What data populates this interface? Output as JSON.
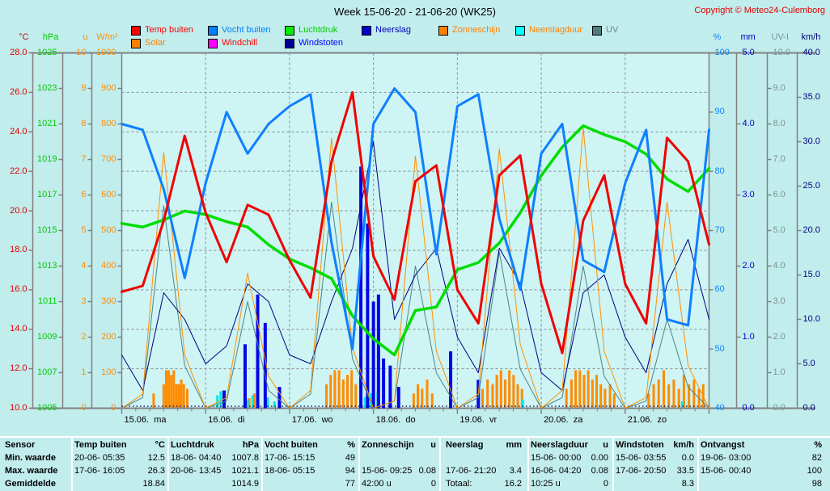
{
  "title": "Week 15-06-20 - 21-06-20 (WK25)",
  "copyright": "Copyright © Meteo24-Culemborg",
  "legend": {
    "rows": [
      [
        {
          "label": "Temp buiten",
          "swatch": "#ff0000",
          "text_color": "#ff0000"
        },
        {
          "label": "Vocht buiten",
          "swatch": "#0080ff",
          "text_color": "#0080ff"
        },
        {
          "label": "Luchtdruk",
          "swatch": "#00ee00",
          "text_color": "#00cc00"
        },
        {
          "label": "Neerslag",
          "swatch": "#0000cc",
          "text_color": "#0000bb"
        },
        {
          "label": "Zonneschijn",
          "swatch": "#ff8000",
          "text_color": "#ff8000"
        },
        {
          "label": "Neerslagduur",
          "swatch": "#00ffff",
          "text_color": "#ff8000"
        },
        {
          "label": "UV",
          "swatch": "#4d7d7d",
          "text_color": "#708585"
        }
      ],
      [
        {
          "label": "Solar",
          "swatch": "#ff8000",
          "text_color": "#ff8000"
        },
        {
          "label": "Windchill",
          "swatch": "#ff00ff",
          "text_color": "#ff0000"
        },
        {
          "label": "Windstoten",
          "swatch": "#000099",
          "text_color": "#0000ff"
        }
      ]
    ]
  },
  "axes": {
    "left": [
      {
        "unit": "°C",
        "color": "#e00000",
        "labels": [
          "28.0",
          "26.0",
          "24.0",
          "22.0",
          "20.0",
          "18.0",
          "16.0",
          "14.0",
          "12.0",
          "10.0"
        ]
      },
      {
        "unit": "hPa",
        "color": "#00cc00",
        "labels": [
          "1025",
          "1023",
          "1021",
          "1019",
          "1017",
          "1015",
          "1013",
          "1011",
          "1009",
          "1007",
          "1005"
        ]
      },
      {
        "unit": "u",
        "color": "#ff8c00",
        "labels": [
          "10",
          "9",
          "8",
          "7",
          "6",
          "5",
          "4",
          "3",
          "2",
          "1",
          "0"
        ]
      },
      {
        "unit": "W/m²",
        "color": "#ff8c00",
        "labels": [
          "1000",
          "900",
          "800",
          "700",
          "600",
          "500",
          "400",
          "300",
          "200",
          "100",
          "0"
        ]
      }
    ],
    "right": [
      {
        "unit": "%",
        "color": "#0a85ff",
        "labels": [
          "100",
          "90",
          "80",
          "70",
          "60",
          "50",
          "40"
        ]
      },
      {
        "unit": "mm",
        "color": "#0000cc",
        "labels": [
          "5.0",
          "4.0",
          "3.0",
          "2.0",
          "1.0",
          "0.0"
        ]
      },
      {
        "unit": "UV-I",
        "color": "#7a9393",
        "labels": [
          "10.0",
          "9.0",
          "8.0",
          "7.0",
          "6.0",
          "5.0",
          "4.0",
          "3.0",
          "2.0",
          "1.0",
          "0.0"
        ]
      },
      {
        "unit": "km/h",
        "color": "#00007f",
        "labels": [
          "40.0",
          "35.0",
          "30.0",
          "25.0",
          "20.0",
          "15.0",
          "10.0",
          "5.0",
          "0.0"
        ]
      }
    ]
  },
  "x_axis": {
    "day_labels": [
      "15.06.  ma",
      "16.06.  di",
      "17.06.  wo",
      "18.06.  do",
      "19.06.  vr",
      "20.06.  za",
      "21.06.  zo"
    ]
  },
  "chart_data": {
    "type": "line",
    "title": "Week 15-06-20 - 21-06-20 (WK25)",
    "x_unit": "days since 15-06-2020 00:00 (sampled every 6 h)",
    "x": [
      0,
      0.25,
      0.5,
      0.75,
      1,
      1.25,
      1.5,
      1.75,
      2,
      2.25,
      2.5,
      2.75,
      3,
      3.25,
      3.5,
      3.75,
      4,
      4.25,
      4.5,
      4.75,
      5,
      5.25,
      5.5,
      5.75,
      6,
      6.25,
      6.5,
      6.75,
      7
    ],
    "grid": true,
    "legend_position": "top",
    "series": [
      {
        "name": "Temp buiten",
        "unit": "°C",
        "color": "#f00000",
        "width": 3,
        "axis_min": 10,
        "axis_max": 28,
        "values": [
          15.9,
          16.2,
          19.5,
          23.8,
          19.9,
          17.4,
          20.3,
          19.8,
          17.5,
          15.6,
          22.5,
          26.0,
          17.7,
          15.5,
          21.5,
          22.3,
          16.0,
          14.3,
          21.8,
          22.8,
          16.3,
          12.8,
          19.5,
          21.8,
          16.3,
          14.3,
          23.7,
          22.5,
          18.3
        ]
      },
      {
        "name": "Vocht buiten",
        "unit": "%",
        "color": "#0f7fff",
        "width": 3,
        "axis_min": 40,
        "axis_max": 100,
        "values": [
          88,
          87,
          77,
          62,
          78,
          90,
          83,
          88,
          91,
          93,
          68,
          50,
          88,
          94,
          90,
          66,
          91,
          93,
          72,
          60,
          83,
          88,
          65,
          63,
          78,
          87,
          55,
          54,
          87
        ]
      },
      {
        "name": "Luchtdruk",
        "unit": "hPa",
        "color": "#00dd00",
        "width": 3.5,
        "axis_min": 1005,
        "axis_max": 1025,
        "values": [
          1015.4,
          1015.2,
          1015.6,
          1016.1,
          1015.9,
          1015.5,
          1015.2,
          1014.2,
          1013.4,
          1012.9,
          1012.3,
          1010.2,
          1008.9,
          1008.0,
          1010.5,
          1010.7,
          1012.8,
          1013.2,
          1014.3,
          1016.0,
          1018.1,
          1019.7,
          1020.9,
          1020.4,
          1020.0,
          1019.3,
          1017.9,
          1017.2,
          1018.5
        ]
      },
      {
        "name": "Solar",
        "unit": "W/m²",
        "color": "#ff9000",
        "width": 1,
        "axis_min": 0,
        "axis_max": 1000,
        "values": [
          0,
          40,
          720,
          150,
          0,
          30,
          380,
          90,
          0,
          50,
          760,
          170,
          0,
          20,
          710,
          160,
          0,
          40,
          730,
          180,
          0,
          50,
          790,
          160,
          0,
          30,
          580,
          120,
          0
        ]
      },
      {
        "name": "UV",
        "unit": "UV-I",
        "color": "#4d8585",
        "width": 1,
        "axis_min": 0,
        "axis_max": 10,
        "values": [
          0,
          0.3,
          5.7,
          1.2,
          0,
          0.2,
          3.0,
          0.5,
          0,
          0.4,
          5.8,
          1.4,
          0,
          0.2,
          4.0,
          1.0,
          0,
          0.3,
          4.4,
          1.1,
          0,
          0.3,
          4.0,
          0.9,
          0,
          0.2,
          2.5,
          0.6,
          0
        ]
      },
      {
        "name": "Windstoten",
        "unit": "km/h",
        "color": "#00007f",
        "width": 1,
        "axis_min": 0,
        "axis_max": 40,
        "values": [
          6,
          2,
          13,
          10,
          5,
          7,
          14,
          12,
          6,
          5,
          12,
          18,
          30,
          10,
          15,
          18,
          8,
          4,
          18,
          14,
          4,
          2,
          13,
          15,
          8,
          4,
          14,
          19,
          10
        ]
      }
    ],
    "neerslag_bars": {
      "name": "Neerslag",
      "unit": "mm",
      "color": "#0505e8",
      "axis_min": 0,
      "axis_max": 5,
      "events": [
        [
          1.22,
          0.25
        ],
        [
          1.47,
          0.9
        ],
        [
          1.62,
          1.6
        ],
        [
          1.71,
          1.2
        ],
        [
          1.88,
          0.3
        ],
        [
          2.85,
          3.4
        ],
        [
          2.93,
          2.6
        ],
        [
          3.0,
          1.5
        ],
        [
          3.06,
          1.6
        ],
        [
          3.12,
          0.7
        ],
        [
          3.2,
          0.6
        ],
        [
          3.3,
          0.3
        ],
        [
          3.92,
          0.8
        ],
        [
          4.25,
          0.4
        ]
      ]
    },
    "zonneschijn_bars": {
      "name": "Zonneschijn",
      "unit": "u per 5 min",
      "color": "#ff8c00",
      "max_value": 0.08,
      "events": [
        [
          0.38,
          0.03
        ],
        [
          0.5,
          0.05
        ],
        [
          0.53,
          0.08
        ],
        [
          0.56,
          0.08
        ],
        [
          0.59,
          0.07
        ],
        [
          0.62,
          0.08
        ],
        [
          0.65,
          0.05
        ],
        [
          0.68,
          0.05
        ],
        [
          0.71,
          0.06
        ],
        [
          0.74,
          0.05
        ],
        [
          0.78,
          0.04
        ],
        [
          1.52,
          0.02
        ],
        [
          1.58,
          0.03
        ],
        [
          2.44,
          0.05
        ],
        [
          2.49,
          0.07
        ],
        [
          2.54,
          0.08
        ],
        [
          2.59,
          0.08
        ],
        [
          2.64,
          0.06
        ],
        [
          2.69,
          0.07
        ],
        [
          2.74,
          0.08
        ],
        [
          2.79,
          0.05
        ],
        [
          3.48,
          0.03
        ],
        [
          3.53,
          0.05
        ],
        [
          3.58,
          0.04
        ],
        [
          3.64,
          0.06
        ],
        [
          3.7,
          0.03
        ],
        [
          4.3,
          0.04
        ],
        [
          4.36,
          0.06
        ],
        [
          4.42,
          0.05
        ],
        [
          4.47,
          0.07
        ],
        [
          4.52,
          0.08
        ],
        [
          4.57,
          0.06
        ],
        [
          4.62,
          0.08
        ],
        [
          4.67,
          0.07
        ],
        [
          4.72,
          0.05
        ],
        [
          4.77,
          0.04
        ],
        [
          5.3,
          0.04
        ],
        [
          5.36,
          0.06
        ],
        [
          5.41,
          0.08
        ],
        [
          5.46,
          0.08
        ],
        [
          5.51,
          0.07
        ],
        [
          5.56,
          0.08
        ],
        [
          5.61,
          0.06
        ],
        [
          5.66,
          0.07
        ],
        [
          5.71,
          0.05
        ],
        [
          5.76,
          0.04
        ],
        [
          5.82,
          0.05
        ],
        [
          5.87,
          0.03
        ],
        [
          6.28,
          0.03
        ],
        [
          6.34,
          0.05
        ],
        [
          6.4,
          0.06
        ],
        [
          6.46,
          0.08
        ],
        [
          6.52,
          0.05
        ],
        [
          6.58,
          0.06
        ],
        [
          6.64,
          0.04
        ],
        [
          6.7,
          0.07
        ],
        [
          6.76,
          0.05
        ],
        [
          6.82,
          0.06
        ],
        [
          6.88,
          0.04
        ],
        [
          6.93,
          0.05
        ]
      ]
    },
    "neerslagduur_bars": {
      "name": "Neerslagduur",
      "unit": "u per 5 min",
      "color": "#00e8e8",
      "max_value": 0.08,
      "events": [
        [
          1.14,
          0.06
        ],
        [
          1.18,
          0.08
        ],
        [
          1.5,
          0.04
        ],
        [
          1.56,
          0.06
        ],
        [
          1.62,
          0.08
        ],
        [
          1.74,
          0.05
        ],
        [
          1.82,
          0.03
        ],
        [
          2.9,
          0.05
        ],
        [
          2.97,
          0.07
        ],
        [
          3.05,
          0.08
        ],
        [
          3.12,
          0.06
        ],
        [
          3.2,
          0.04
        ],
        [
          3.92,
          0.03
        ],
        [
          4.78,
          0.04
        ],
        [
          6.68,
          0.03
        ]
      ]
    }
  },
  "table": {
    "row_headers": [
      "Sensor",
      "Min. waarde",
      "Max. waarde",
      "Gemiddelde"
    ],
    "columns": [
      {
        "name": "Temp buiten",
        "unit": "°C",
        "min": [
          "20-06- 05:35",
          "12.5"
        ],
        "max": [
          "17-06- 16:05",
          "26.3"
        ],
        "avg": [
          "",
          "18.84"
        ]
      },
      {
        "name": "Luchtdruk",
        "unit": "hPa",
        "min": [
          "18-06- 04:40",
          "1007.8"
        ],
        "max": [
          "20-06- 13:45",
          "1021.1"
        ],
        "avg": [
          "",
          "1014.9"
        ]
      },
      {
        "name": "Vocht buiten",
        "unit": "%",
        "min": [
          "17-06- 15:15",
          "49"
        ],
        "max": [
          "18-06- 05:15",
          "94"
        ],
        "avg": [
          "",
          "77"
        ]
      },
      {
        "name": "Zonneschijn",
        "unit": "u",
        "min": [
          "",
          ""
        ],
        "max": [
          "15-06- 09:25",
          "0.08"
        ],
        "avg": [
          "42:00 u",
          "0"
        ]
      },
      {
        "name": "Neerslag",
        "unit": "mm",
        "min": [
          "",
          ""
        ],
        "max": [
          "17-06- 21:20",
          "3.4"
        ],
        "avg": [
          "Totaal:",
          "16.2"
        ]
      },
      {
        "name": "Neerslagduur",
        "unit": "u",
        "min": [
          "15-06- 00:00",
          "0.00"
        ],
        "max": [
          "16-06- 04:20",
          "0.08"
        ],
        "avg": [
          "10:25 u",
          "0"
        ]
      },
      {
        "name": "Windstoten",
        "unit": "km/h",
        "min": [
          "15-06- 03:55",
          "0.0"
        ],
        "max": [
          "17-06- 20:50",
          "33.5"
        ],
        "avg": [
          "",
          "8.3"
        ]
      },
      {
        "name": "Ontvangst",
        "unit": "%",
        "min": [
          "19-06- 03:00",
          "82"
        ],
        "max": [
          "15-06- 00:40",
          "100"
        ],
        "avg": [
          "",
          "98"
        ]
      }
    ]
  },
  "colors": {
    "page_bg": "#c2eded",
    "plot_bg": "#cef4f4",
    "grid": "#8a8a8a",
    "frame": "#808080",
    "copyright": "#e00000"
  }
}
